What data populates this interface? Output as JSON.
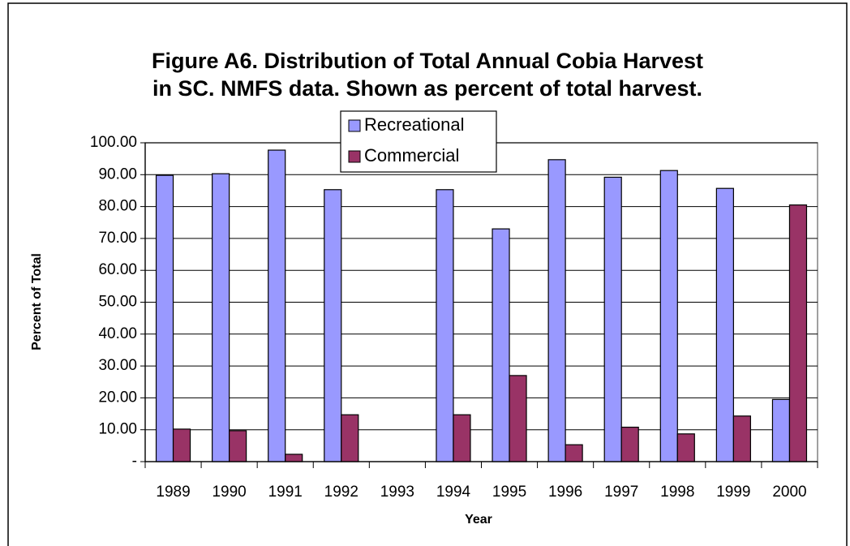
{
  "chart_data": {
    "type": "bar",
    "title": [
      "Figure A6.  Distribution of Total Annual Cobia Harvest",
      "in SC.  NMFS data. Shown as percent of total harvest."
    ],
    "x_label": "Year",
    "y_label": "Percent of Total",
    "categories": [
      "1989",
      "1990",
      "1991",
      "1992",
      "1993",
      "1994",
      "1995",
      "1996",
      "1997",
      "1998",
      "1999",
      "2000"
    ],
    "series": [
      {
        "name": "Recreational",
        "color": "#9999ff",
        "values": [
          89.8,
          90.3,
          97.7,
          85.3,
          0,
          85.3,
          73.0,
          94.7,
          89.2,
          91.3,
          85.7,
          19.5
        ]
      },
      {
        "name": "Commercial",
        "color": "#993366",
        "values": [
          10.2,
          9.7,
          2.3,
          14.7,
          0,
          14.7,
          27.0,
          5.3,
          10.8,
          8.7,
          14.3,
          80.5
        ]
      }
    ],
    "ylim": [
      0,
      100
    ],
    "yticks": [
      {
        "value": 0,
        "label": "-"
      },
      {
        "value": 10,
        "label": "10.00"
      },
      {
        "value": 20,
        "label": "20.00"
      },
      {
        "value": 30,
        "label": "30.00"
      },
      {
        "value": 40,
        "label": "40.00"
      },
      {
        "value": 50,
        "label": "50.00"
      },
      {
        "value": 60,
        "label": "60.00"
      },
      {
        "value": 70,
        "label": "70.00"
      },
      {
        "value": 80,
        "label": "80.00"
      },
      {
        "value": 90,
        "label": "90.00"
      },
      {
        "value": 100,
        "label": "100.00"
      }
    ],
    "grid": true,
    "legend": "top"
  }
}
